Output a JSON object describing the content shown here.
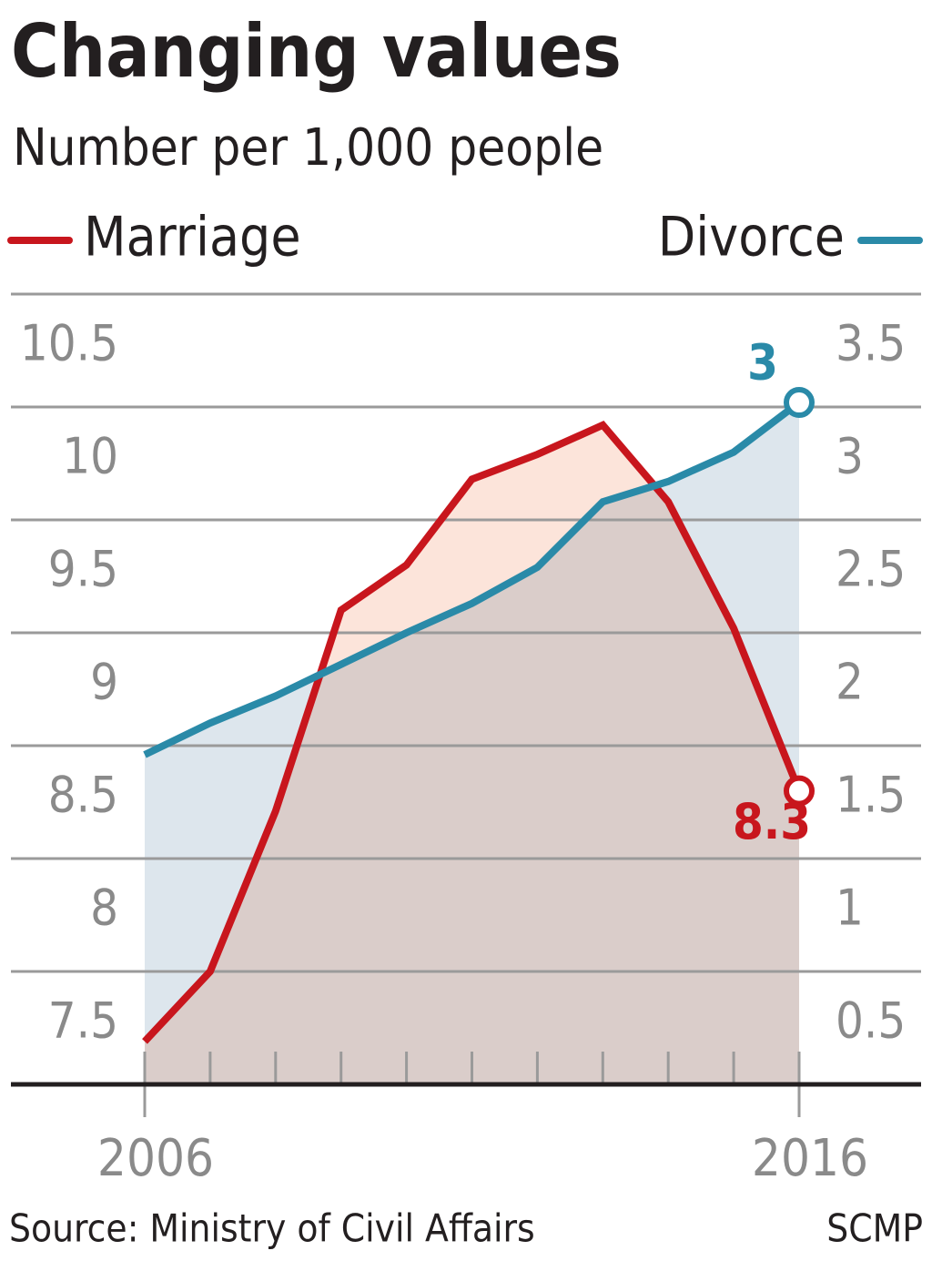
{
  "chart_data": {
    "type": "line",
    "title": "Changing values",
    "subtitle": "Number per 1,000 people",
    "source": "Source: Ministry of Civil Affairs",
    "credit": "SCMP",
    "x": [
      2006,
      2007,
      2008,
      2009,
      2010,
      2011,
      2012,
      2013,
      2014,
      2015,
      2016
    ],
    "xlim": [
      2006,
      2016
    ],
    "xticks": [
      2006,
      2016
    ],
    "ylim": [
      7,
      10.5
    ],
    "yticks": [
      7.5,
      8,
      8.5,
      9,
      9.5,
      10,
      10.5
    ],
    "y2lim": [
      0,
      3.5
    ],
    "y2ticks": [
      0.5,
      1,
      1.5,
      2,
      2.5,
      3,
      3.5
    ],
    "grid": true,
    "area": true,
    "series": [
      {
        "name": "Marriage",
        "color": "#c8161d",
        "area_color": "#fce4da",
        "values": [
          7.19,
          7.5,
          8.21,
          9.1,
          9.3,
          9.68,
          9.79,
          9.92,
          9.58,
          9.02,
          8.3
        ],
        "value_labels": [
          null,
          null,
          null,
          null,
          null,
          null,
          null,
          null,
          null,
          null,
          "8.3"
        ]
      },
      {
        "name": "Divorce",
        "color": "#2a8aa8",
        "area_color": "#dde6ed",
        "axis": "y2",
        "values": [
          1.46,
          1.6,
          1.72,
          1.86,
          2.0,
          2.13,
          2.29,
          2.58,
          2.67,
          2.8,
          3.02
        ],
        "value_labels": [
          null,
          null,
          null,
          null,
          null,
          null,
          null,
          null,
          null,
          null,
          "3"
        ]
      }
    ]
  }
}
